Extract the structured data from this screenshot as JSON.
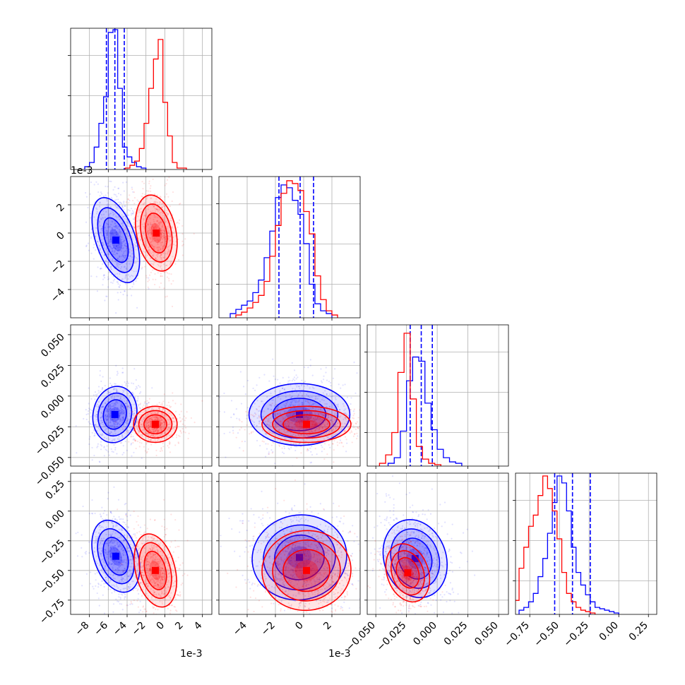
{
  "chart_data": {
    "type": "corner",
    "title": "",
    "grid": true,
    "colors": {
      "a": "#0000ff",
      "b": "#ff0000"
    },
    "offset_labels": [
      "1e-3",
      "1e-3",
      "1e-3"
    ],
    "params": [
      {
        "range": [
          -10,
          5
        ],
        "scale": 0.001,
        "ticks": [
          -8,
          -6,
          -4,
          -2,
          0,
          2,
          4
        ],
        "tick_labels": [
          "−8",
          "−6",
          "−4",
          "−2",
          "0",
          "2",
          "4"
        ]
      },
      {
        "range": [
          -6,
          4
        ],
        "scale": 0.001,
        "ticks": [
          -4,
          -2,
          0,
          2
        ],
        "tick_labels": [
          "−4",
          "−2",
          "0",
          "2"
        ]
      },
      {
        "range": [
          -0.057,
          0.058
        ],
        "scale": 1,
        "ticks": [
          -0.05,
          -0.025,
          0,
          0.025,
          0.05
        ],
        "tick_labels": [
          "−0.050",
          "−0.025",
          "0.000",
          "0.025",
          "0.050"
        ]
      },
      {
        "range": [
          -0.87,
          0.32
        ],
        "scale": 1,
        "ticks": [
          -0.75,
          -0.5,
          -0.25,
          0,
          0.25
        ],
        "tick_labels": [
          "−0.75",
          "−0.50",
          "−0.25",
          "0.00",
          "0.25"
        ]
      }
    ],
    "series": [
      {
        "color": "#0000ff",
        "marginals": [
          {
            "edges_start": -8.5,
            "bin": 0.5,
            "counts": [
              0.02,
              0.05,
              0.16,
              0.33,
              0.52,
              0.98,
              1.0,
              0.58,
              0.16,
              0.09,
              0.05,
              0.02,
              0.01
            ],
            "quantiles": [
              -6.2,
              -5.3,
              -4.3
            ]
          },
          {
            "edges_start": -5.2,
            "bin": 0.4,
            "counts": [
              0.03,
              0.06,
              0.09,
              0.12,
              0.18,
              0.27,
              0.43,
              0.62,
              0.86,
              0.95,
              0.93,
              0.84,
              0.74,
              0.53,
              0.24,
              0.1,
              0.05,
              0.03
            ],
            "quantiles": [
              -1.75,
              -0.25,
              0.7
            ]
          },
          {
            "edges_start": -0.04,
            "bin": 0.005,
            "counts": [
              0.02,
              0.06,
              0.25,
              0.61,
              0.78,
              0.75,
              0.45,
              0.26,
              0.12,
              0.06,
              0.03,
              0.02
            ],
            "quantiles": [
              -0.022,
              -0.013,
              -0.004
            ]
          },
          {
            "edges_start": -0.84,
            "bin": 0.04,
            "counts": [
              0.03,
              0.05,
              0.09,
              0.15,
              0.27,
              0.4,
              0.58,
              0.8,
              0.99,
              0.94,
              0.74,
              0.48,
              0.3,
              0.21,
              0.14,
              0.09,
              0.05,
              0.04,
              0.03,
              0.02,
              0.01
            ],
            "quantiles": [
              -0.54,
              -0.39,
              -0.24
            ]
          }
        ],
        "blobs": [
          {
            "x": 0,
            "y": 1,
            "mean": [
              -5.2,
              -0.5
            ],
            "sd": [
              1.0,
              1.5
            ],
            "tilt": -0.35
          },
          {
            "x": 0,
            "y": 2,
            "mean": [
              -5.3,
              -0.015
            ],
            "sd": [
              1.1,
              0.011
            ],
            "tilt": 0.2
          },
          {
            "x": 0,
            "y": 3,
            "mean": [
              -5.2,
              -0.38
            ],
            "sd": [
              1.1,
              0.15
            ],
            "tilt": -0.35
          },
          {
            "x": 1,
            "y": 2,
            "mean": [
              -0.3,
              -0.015
            ],
            "sd": [
              1.7,
              0.012
            ],
            "tilt": 0.0
          },
          {
            "x": 1,
            "y": 3,
            "mean": [
              -0.3,
              -0.39
            ],
            "sd": [
              1.6,
              0.17
            ],
            "tilt": -0.2
          },
          {
            "x": 2,
            "y": 3,
            "mean": [
              -0.018,
              -0.4
            ],
            "sd": [
              0.012,
              0.16
            ],
            "tilt": -0.35
          }
        ]
      },
      {
        "color": "#ff0000",
        "marginals": [
          {
            "edges_start": -4.2,
            "bin": 0.5,
            "counts": [
              0.01,
              0.03,
              0.06,
              0.15,
              0.33,
              0.58,
              0.79,
              0.93,
              0.48,
              0.24,
              0.05,
              0.01,
              0.01
            ],
            "quantiles": []
          },
          {
            "edges_start": -4.8,
            "bin": 0.4,
            "counts": [
              0.02,
              0.04,
              0.07,
              0.11,
              0.16,
              0.26,
              0.44,
              0.66,
              0.89,
              0.98,
              0.96,
              0.91,
              0.76,
              0.6,
              0.3,
              0.13,
              0.05,
              0.02
            ],
            "quantiles": []
          },
          {
            "edges_start": -0.047,
            "bin": 0.005,
            "counts": [
              0.02,
              0.08,
              0.24,
              0.67,
              0.95,
              0.48,
              0.14,
              0.05,
              0.02,
              0.01
            ],
            "quantiles": []
          },
          {
            "edges_start": -0.88,
            "bin": 0.04,
            "counts": [
              0.1,
              0.33,
              0.48,
              0.63,
              0.71,
              0.85,
              0.99,
              0.9,
              0.74,
              0.54,
              0.3,
              0.15,
              0.09,
              0.05,
              0.03,
              0.02,
              0.01
            ],
            "quantiles": []
          }
        ],
        "blobs": [
          {
            "x": 0,
            "y": 1,
            "mean": [
              -0.9,
              0.0
            ],
            "sd": [
              1.0,
              1.3
            ],
            "tilt": -0.2
          },
          {
            "x": 0,
            "y": 2,
            "mean": [
              -1.0,
              -0.023
            ],
            "sd": [
              1.1,
              0.007
            ],
            "tilt": 0.0
          },
          {
            "x": 0,
            "y": 3,
            "mean": [
              -1.0,
              -0.5
            ],
            "sd": [
              1.0,
              0.15
            ],
            "tilt": -0.25
          },
          {
            "x": 1,
            "y": 2,
            "mean": [
              0.2,
              -0.023
            ],
            "sd": [
              1.5,
              0.007
            ],
            "tilt": 0.0
          },
          {
            "x": 1,
            "y": 3,
            "mean": [
              0.2,
              -0.5
            ],
            "sd": [
              1.5,
              0.16
            ],
            "tilt": -0.1
          },
          {
            "x": 2,
            "y": 3,
            "mean": [
              -0.024,
              -0.52
            ],
            "sd": [
              0.008,
              0.12
            ],
            "tilt": -0.35
          }
        ]
      }
    ]
  }
}
